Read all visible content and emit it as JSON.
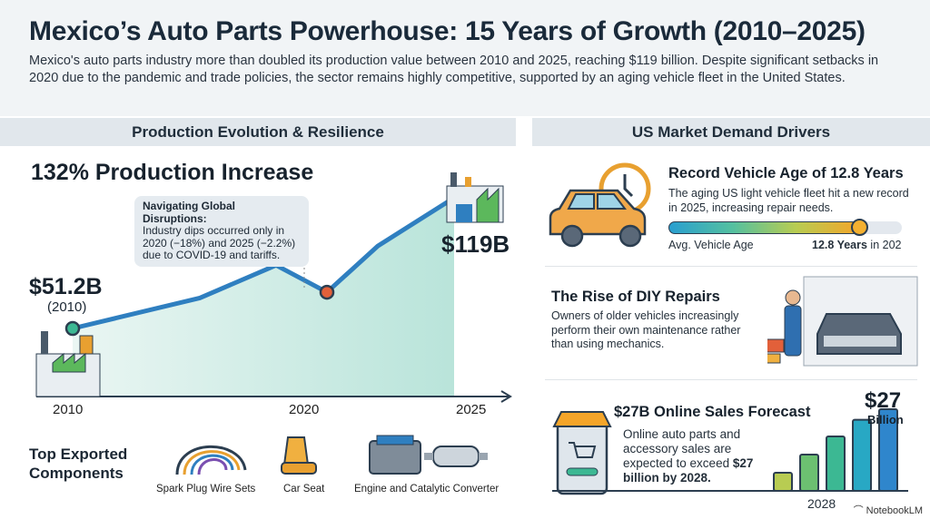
{
  "header": {
    "title": "Mexico’s Auto Parts Powerhouse: 15 Years of Growth (2010–2025)",
    "subtitle": "Mexico's auto parts industry more than doubled its production value between 2010 and 2025, reaching $119 billion. Despite significant setbacks in 2020 due to the pandemic and trade policies, the sector remains highly competitive, supported by an aging vehicle fleet in the United States."
  },
  "left": {
    "section_title": "Production Evolution & Resilience",
    "headline": "132% Production Increase",
    "start_value": "$51.2B",
    "start_year": "(2010)",
    "end_value": "$119B",
    "callout": {
      "title": "Navigating Global Disruptions:",
      "text": "Industry dips occurred only in 2020 (−18%) and 2025 (−2.2%) due to COVID-19 and tariffs."
    },
    "components_title": "Top Exported Components",
    "components": [
      {
        "label": "Spark Plug Wire Sets",
        "icon": "spark-plug-wires-icon"
      },
      {
        "label": "Car Seat",
        "icon": "car-seat-icon"
      },
      {
        "label": "Engine and Catalytic Converter",
        "icon": "engine-icon"
      }
    ]
  },
  "right": {
    "section_title": "US Market Demand Drivers",
    "age": {
      "title": "Record Vehicle Age of 12.8 Years",
      "text": "The aging US light vehicle fleet hit a new record in 2025, increasing repair needs.",
      "bar_label": "Avg. Vehicle Age",
      "value_bold": "12.8 Years",
      "value_rest": " in 202",
      "fill_fraction": 0.82
    },
    "diy": {
      "title": "The Rise of DIY Repairs",
      "text": "Owners of older vehicles increasingly perform their own maintenance rather than using mechanics."
    },
    "online": {
      "title": "$27B Online Sales Forecast",
      "text_a": "Online auto parts and accessory sales are expected to exceed ",
      "text_b": "$27 billion by 2028.",
      "big_value": "$27",
      "big_unit": "Billion"
    }
  },
  "brand": "NotebookLM",
  "colors": {
    "line": "#2f7fc0",
    "fill": "#bfe6de",
    "dip": "#e2603a",
    "gauge_start": "#2a9fd0",
    "gauge_end": "#f4a52a"
  },
  "chart_data": [
    {
      "type": "line",
      "x": [
        2010,
        2015,
        2018,
        2020,
        2022,
        2025
      ],
      "values": [
        51.2,
        67,
        84,
        70,
        94,
        119
      ],
      "labeled_points": {
        "2010": "$51.2B",
        "2025": "$119B"
      },
      "tick_labels": [
        "2010",
        "2020",
        "2025"
      ],
      "note_values_estimated": true
    },
    {
      "type": "bar",
      "values": [
        6,
        12,
        18,
        23.5,
        27
      ],
      "xlabel": "2028",
      "top_label": "$27 Billion",
      "colors": [
        "#b8cc52",
        "#6cc071",
        "#3cb893",
        "#28a8c4",
        "#2f86cc"
      ]
    }
  ]
}
